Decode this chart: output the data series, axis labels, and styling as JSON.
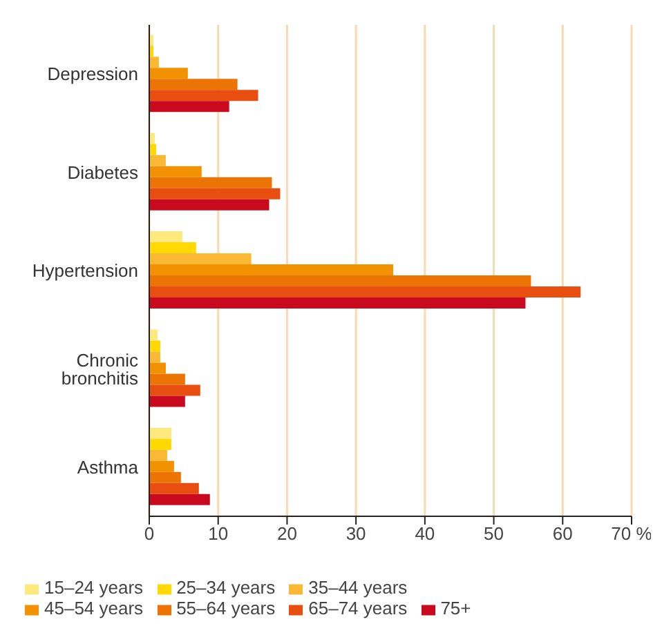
{
  "chart_data": {
    "type": "bar",
    "orientation": "horizontal",
    "categories": [
      "Depression",
      "Diabetes",
      "Hypertension",
      "Chronic bronchitis",
      "Asthma"
    ],
    "series": [
      {
        "name": "15–24 years",
        "color": "#fde97d",
        "values": [
          0.6,
          0.8,
          4.8,
          1.2,
          3.2
        ]
      },
      {
        "name": "25–34 years",
        "color": "#ffd900",
        "values": [
          0.6,
          1.0,
          6.8,
          1.6,
          3.2
        ]
      },
      {
        "name": "35–44 years",
        "color": "#f9b934",
        "values": [
          1.4,
          2.4,
          14.8,
          1.6,
          2.6
        ]
      },
      {
        "name": "45–54 years",
        "color": "#f39200",
        "values": [
          5.6,
          7.6,
          35.4,
          2.4,
          3.6
        ]
      },
      {
        "name": "55–64 years",
        "color": "#ec7404",
        "values": [
          12.8,
          17.8,
          55.4,
          5.2,
          4.6
        ]
      },
      {
        "name": "65–74 years",
        "color": "#e84e0f",
        "values": [
          15.8,
          19.0,
          62.6,
          7.4,
          7.2
        ]
      },
      {
        "name": "75+",
        "color": "#c9091e",
        "values": [
          11.6,
          17.4,
          54.6,
          5.2,
          8.8
        ]
      }
    ],
    "xlim": [
      0,
      70
    ],
    "xticks": [
      0,
      10,
      20,
      30,
      40,
      50,
      60,
      {
        "value": 70,
        "label": "70 %"
      }
    ],
    "grid": "x",
    "legend": "bottom"
  }
}
